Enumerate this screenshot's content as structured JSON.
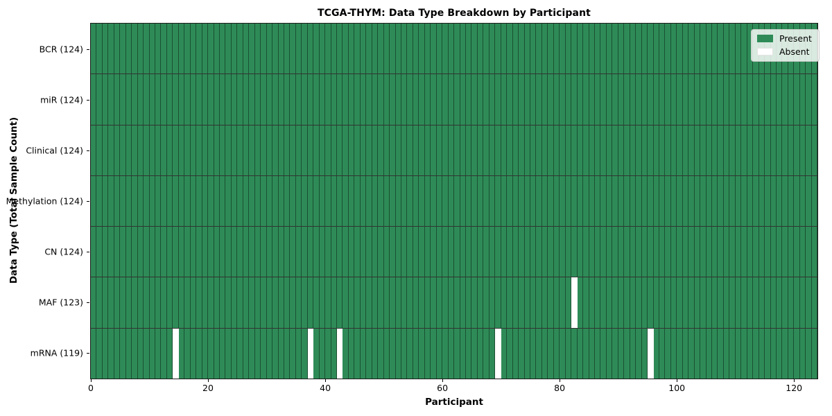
{
  "title": "TCGA-THYM: Data Type Breakdown by Participant",
  "x_axis": {
    "label": "Participant",
    "ticks": [
      0,
      20,
      40,
      60,
      80,
      100,
      120
    ]
  },
  "y_axis": {
    "label": "Data Type (Total Sample Count)"
  },
  "legend": {
    "items": [
      {
        "label": "Present",
        "color": "#2e8b57"
      },
      {
        "label": "Absent",
        "color": "#ffffff"
      }
    ]
  },
  "colors": {
    "present": "#2e8b57",
    "absent": "#ffffff",
    "bar_edge": "rgba(0,0,0,0.42)",
    "row_separator": "rgba(0,0,0,0.8)",
    "spine": "#1c1c1c"
  },
  "chart_data": {
    "type": "heatmap",
    "title": "TCGA-THYM: Data Type Breakdown by Participant",
    "xlabel": "Participant",
    "ylabel": "Data Type (Total Sample Count)",
    "x_range": [
      0,
      124
    ],
    "x_ticks": [
      0,
      20,
      40,
      60,
      80,
      100,
      120
    ],
    "n_participants": 124,
    "grid": false,
    "legend": [
      "Present",
      "Absent"
    ],
    "legend_position": "upper right",
    "rows": [
      {
        "label": "BCR (124)",
        "data_type": "BCR",
        "present_count": 124,
        "absent_participants": []
      },
      {
        "label": "miR (124)",
        "data_type": "miR",
        "present_count": 124,
        "absent_participants": []
      },
      {
        "label": "Clinical (124)",
        "data_type": "Clinical",
        "present_count": 124,
        "absent_participants": []
      },
      {
        "label": "Methylation (124)",
        "data_type": "Methylation",
        "present_count": 124,
        "absent_participants": []
      },
      {
        "label": "CN (124)",
        "data_type": "CN",
        "present_count": 124,
        "absent_participants": []
      },
      {
        "label": "MAF (123)",
        "data_type": "MAF",
        "present_count": 123,
        "absent_participants": [
          82
        ]
      },
      {
        "label": "mRNA (119)",
        "data_type": "mRNA",
        "present_count": 119,
        "absent_participants": [
          14,
          37,
          42,
          69,
          95
        ]
      }
    ]
  }
}
